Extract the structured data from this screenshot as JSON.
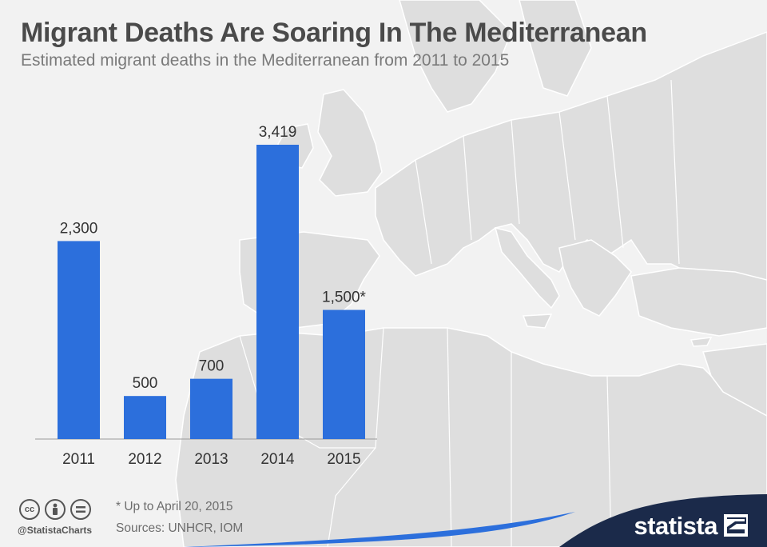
{
  "header": {
    "title": "Migrant Deaths Are Soaring In The Mediterranean",
    "subtitle": "Estimated migrant deaths in the Mediterranean from 2011 to 2015"
  },
  "chart_data": {
    "type": "bar",
    "title": "Migrant Deaths Are Soaring In The Mediterranean",
    "subtitle": "Estimated migrant deaths in the Mediterranean from 2011 to 2015",
    "categories": [
      "2011",
      "2012",
      "2013",
      "2014",
      "2015"
    ],
    "values": [
      2300,
      500,
      700,
      3419,
      1500
    ],
    "data_labels": [
      "2,300",
      "500",
      "700",
      "3,419",
      "1,500*"
    ],
    "ylim": [
      0,
      3419
    ],
    "grid": false,
    "bar_color": "#2c6fdc"
  },
  "footer": {
    "footnote": "* Up to April 20, 2015",
    "sources": "Sources: UNHCR, IOM",
    "handle": "@StatistaCharts",
    "brand": "statista",
    "license_icons": [
      "cc-icon",
      "by-icon",
      "equals-icon"
    ]
  },
  "colors": {
    "background": "#f2f2f2",
    "map_land": "#dedede",
    "map_border": "#ffffff",
    "brand_navy": "#1b2a4a",
    "brand_blue": "#2c6fdc"
  }
}
